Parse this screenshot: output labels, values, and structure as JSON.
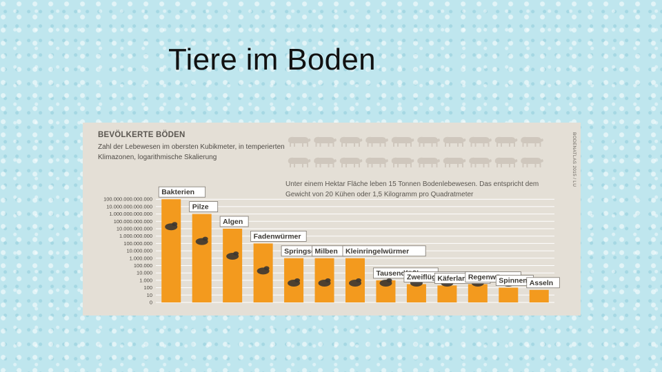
{
  "slide": {
    "title": "Tiere im Boden"
  },
  "chart_data": {
    "type": "bar",
    "title": "BEVÖLKERTE BÖDEN",
    "subtitle": "Zahl der Lebewesen im obersten Kubikmeter, in temperierten Klimazonen, logarithmische Skalierung",
    "credit": "BODENATLAS 2015 / LU",
    "annotation": "Unter einem Hektar Fläche leben 15 Tonnen Bodenlebewesen. Das entspricht dem Gewicht von 20 Kühen oder 1,5 Kilogramm pro Quadratmeter",
    "log_scale": true,
    "grid": true,
    "yticks": [
      "0",
      "10",
      "100",
      "1.000",
      "10.000",
      "100.000",
      "1.000.000",
      "10.000.000",
      "100.000.000",
      "1.000.000.000",
      "10.000.000.000",
      "100.000.000.000",
      "1.000.000.000.000",
      "10.000.000.000.000",
      "100.000.000.000.000"
    ],
    "categories": [
      "Bakterien",
      "Pilze",
      "Algen",
      "Fadenwürmer",
      "Springschwänze",
      "Milben",
      "Kleinringelwürmer",
      "Tausendfüßler",
      "Zweiflüglerlarven",
      "Käferlarven",
      "Regenwürmer",
      "Spinnen",
      "Asseln"
    ],
    "values": [
      100000000000000,
      1000000000000,
      10000000000,
      100000000,
      1000000,
      1000000,
      1000000,
      1000,
      300,
      200,
      300,
      100,
      50
    ],
    "bar_color": "#f39a1e",
    "icon_color": "#3b3632"
  }
}
